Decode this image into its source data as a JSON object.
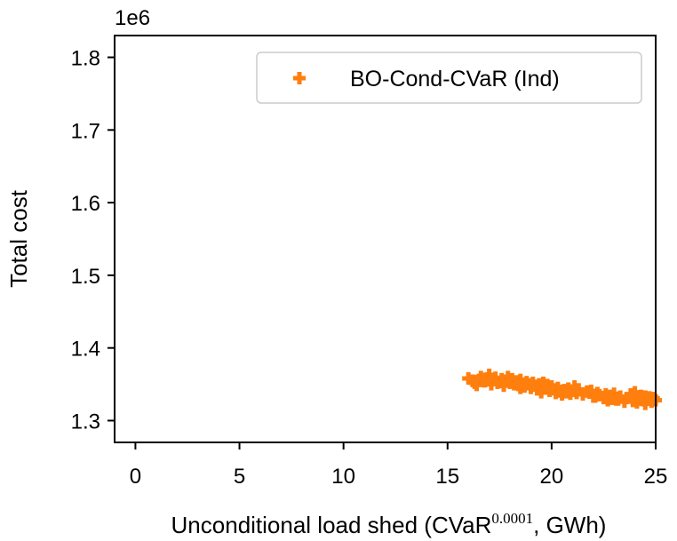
{
  "chart_data": {
    "type": "scatter",
    "title": "",
    "xlabel_prefix": "Unconditional load shed (CVaR",
    "xlabel_sup": "0.0001",
    "xlabel_suffix": ", GWh)",
    "ylabel": "Total cost",
    "y_offset_text": "1e6",
    "xlim": [
      -1,
      25
    ],
    "ylim": [
      1.27,
      1.83
    ],
    "xticks": [
      0,
      5,
      10,
      15,
      20,
      25
    ],
    "xtick_labels": [
      "0",
      "5",
      "10",
      "15",
      "20",
      "25"
    ],
    "yticks": [
      1.3,
      1.4,
      1.5,
      1.6,
      1.7,
      1.8
    ],
    "ytick_labels": [
      "1.3",
      "1.4",
      "1.5",
      "1.6",
      "1.7",
      "1.8"
    ],
    "grid": false,
    "legend_position": "upper-right",
    "series": [
      {
        "name": "BO-Cond-CVaR (Ind)",
        "color": "#ff7f0e",
        "marker": "plus",
        "x": [
          16.0,
          16.2,
          16.3,
          16.5,
          16.6,
          16.8,
          16.9,
          17.0,
          17.1,
          17.2,
          17.3,
          17.5,
          17.6,
          17.7,
          17.8,
          17.9,
          18.0,
          18.1,
          18.2,
          18.3,
          18.4,
          18.5,
          18.6,
          18.7,
          18.8,
          18.9,
          19.0,
          19.1,
          19.2,
          19.3,
          19.4,
          19.5,
          19.6,
          19.7,
          19.8,
          19.9,
          20.0,
          20.1,
          20.2,
          20.3,
          20.4,
          20.5,
          20.6,
          20.7,
          20.8,
          20.9,
          21.0,
          21.2,
          21.3,
          21.5,
          21.7,
          21.9,
          22.0,
          22.2,
          22.3,
          22.5,
          22.6,
          22.7,
          22.8,
          22.9,
          23.0,
          23.2,
          23.3,
          23.5,
          23.6,
          23.8,
          23.9,
          24.0,
          24.1,
          24.2,
          24.3,
          24.4,
          24.5,
          24.6,
          24.7,
          24.8,
          24.9,
          25.0,
          16.4,
          17.4,
          18.5,
          19.5,
          20.5,
          21.1,
          22.1,
          23.1,
          24.0,
          24.5
        ],
        "y": [
          1.358,
          1.355,
          1.352,
          1.356,
          1.36,
          1.354,
          1.358,
          1.363,
          1.35,
          1.356,
          1.359,
          1.353,
          1.357,
          1.348,
          1.355,
          1.36,
          1.352,
          1.357,
          1.35,
          1.354,
          1.349,
          1.356,
          1.351,
          1.347,
          1.353,
          1.35,
          1.345,
          1.352,
          1.348,
          1.343,
          1.35,
          1.346,
          1.352,
          1.344,
          1.349,
          1.341,
          1.347,
          1.343,
          1.338,
          1.345,
          1.34,
          1.336,
          1.342,
          1.339,
          1.344,
          1.337,
          1.341,
          1.338,
          1.343,
          1.336,
          1.34,
          1.341,
          1.333,
          1.338,
          1.335,
          1.331,
          1.336,
          1.328,
          1.334,
          1.33,
          1.337,
          1.329,
          1.333,
          1.326,
          1.331,
          1.336,
          1.327,
          1.332,
          1.325,
          1.33,
          1.334,
          1.328,
          1.323,
          1.329,
          1.332,
          1.326,
          1.331,
          1.328,
          1.349,
          1.352,
          1.345,
          1.339,
          1.341,
          1.347,
          1.333,
          1.329,
          1.339,
          1.333
        ]
      }
    ]
  }
}
